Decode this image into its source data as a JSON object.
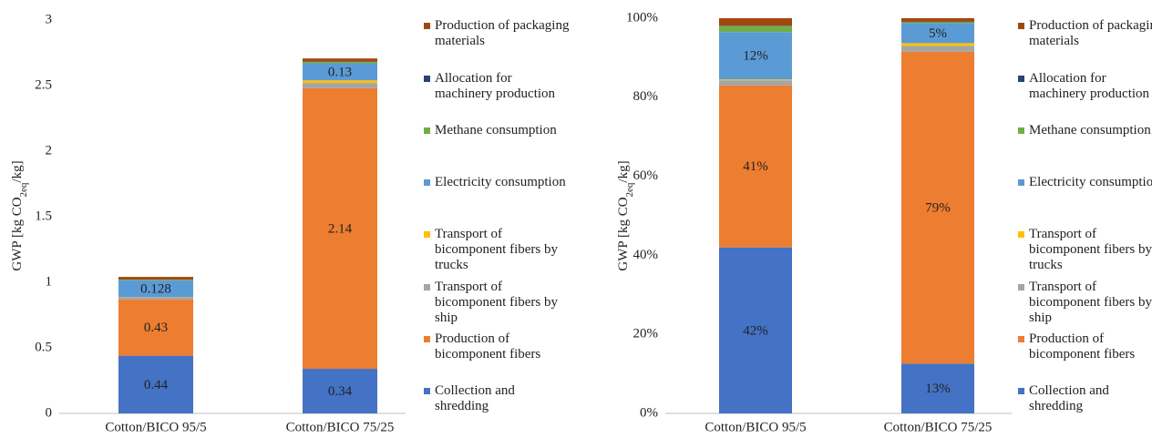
{
  "chart_data": [
    {
      "type": "stacked-bar",
      "y_label": [
        "GWP [kg CO",
        "2eq",
        "/kg]"
      ],
      "categories": [
        "Cotton/BICO 95/5",
        "Cotton/BICO 75/25"
      ],
      "ylim": [
        0,
        3
      ],
      "yticks": [
        0,
        0.5,
        1,
        1.5,
        2,
        2.5,
        3
      ],
      "grid": false,
      "series": [
        {
          "name": "Collection and shredding",
          "color": "#4472c4",
          "values": [
            0.44,
            0.34
          ],
          "value_labels": [
            "0.44",
            "0.34"
          ]
        },
        {
          "name": "Production of bicomponent fibers",
          "color": "#ed7d31",
          "values": [
            0.43,
            2.14
          ],
          "value_labels": [
            "0.43",
            "2.14"
          ]
        },
        {
          "name": "Transport of bicomponent fibers by ship",
          "color": "#a5a5a5",
          "values": [
            0.015,
            0.04
          ],
          "value_labels": [
            null,
            null
          ]
        },
        {
          "name": "Transport of bicomponent fibers by trucks",
          "color": "#ffc000",
          "values": [
            0.002,
            0.02
          ],
          "value_labels": [
            null,
            null
          ]
        },
        {
          "name": "Electricity consumption",
          "color": "#5b9bd5",
          "values": [
            0.128,
            0.13
          ],
          "value_labels": [
            "0.128",
            "0.13"
          ]
        },
        {
          "name": "Methane consumption",
          "color": "#70ad47",
          "values": [
            0.005,
            0.01
          ],
          "value_labels": [
            null,
            null
          ]
        },
        {
          "name": "Allocation for machinery production",
          "color": "#264478",
          "values": [
            0.001,
            0.002
          ],
          "value_labels": [
            null,
            null
          ]
        },
        {
          "name": "Production of packaging materials",
          "color": "#9e480e",
          "values": [
            0.02,
            0.025
          ],
          "value_labels": [
            null,
            null
          ]
        }
      ]
    },
    {
      "type": "stacked-bar",
      "y_label": [
        "GWP [kg CO",
        "2eq",
        "/kg]"
      ],
      "categories": [
        "Cotton/BICO 95/5",
        "Cotton/BICO 75/25"
      ],
      "ylim": [
        0,
        100
      ],
      "yticks": [
        {
          "value": 0,
          "label": "0%"
        },
        {
          "value": 20,
          "label": "20%"
        },
        {
          "value": 40,
          "label": "40%"
        },
        {
          "value": 60,
          "label": "60%"
        },
        {
          "value": 80,
          "label": "80%"
        },
        {
          "value": 100,
          "label": "100%"
        }
      ],
      "grid": false,
      "series": [
        {
          "name": "Collection and shredding",
          "color": "#4472c4",
          "values": [
            42,
            12.6
          ],
          "value_labels": [
            "42%",
            "13%"
          ]
        },
        {
          "name": "Production of bicomponent fibers",
          "color": "#ed7d31",
          "values": [
            41,
            78.9
          ],
          "value_labels": [
            "41%",
            "79%"
          ]
        },
        {
          "name": "Transport of bicomponent fibers by ship",
          "color": "#a5a5a5",
          "values": [
            1.3,
            1.5
          ],
          "value_labels": [
            null,
            null
          ]
        },
        {
          "name": "Transport of bicomponent fibers by trucks",
          "color": "#ffc000",
          "values": [
            0.2,
            0.7
          ],
          "value_labels": [
            null,
            null
          ]
        },
        {
          "name": "Electricity consumption",
          "color": "#5b9bd5",
          "values": [
            12,
            5
          ],
          "value_labels": [
            "12%",
            "5%"
          ]
        },
        {
          "name": "Methane consumption",
          "color": "#70ad47",
          "values": [
            1.5,
            0.3
          ],
          "value_labels": [
            null,
            null
          ]
        },
        {
          "name": "Allocation for machinery production",
          "color": "#264478",
          "values": [
            0.1,
            0.1
          ],
          "value_labels": [
            null,
            null
          ]
        },
        {
          "name": "Production of packaging materials",
          "color": "#9e480e",
          "values": [
            1.9,
            0.9
          ],
          "value_labels": [
            null,
            null
          ]
        }
      ]
    }
  ]
}
